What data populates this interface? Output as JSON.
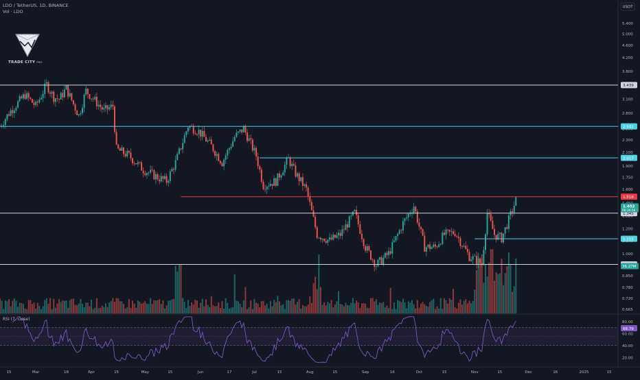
{
  "header": {
    "symbol_line": "LDO / TetherUS, 1D, BINANCE",
    "volume_line": "Vol · LDO",
    "currency_button": "USDT"
  },
  "logo": {
    "text": "TRADE CITY",
    "suffix": "PRO"
  },
  "colors": {
    "background": "#131722",
    "up": "#26a69a",
    "down": "#ef5350",
    "white_line": "#d1d4dc",
    "cyan_line": "#4dd0e1",
    "red_line": "#f23645",
    "rsi_line": "#7e57c2",
    "text": "#b2b5be"
  },
  "chart_data": [
    {
      "type": "candlestick",
      "title": "LDO / TetherUS, 1D, BINANCE",
      "y_scale": "log",
      "price_ticks": [
        "5.400",
        "5.000",
        "4.600",
        "4.200",
        "3.800",
        "3.400",
        "3.100",
        "2.800",
        "2.500",
        "2.300",
        "2.100",
        "1.900",
        "1.750",
        "1.600",
        "1.450",
        "1.320",
        "1.200",
        "1.100",
        "1.000",
        "0.924",
        "0.850",
        "0.780",
        "0.720",
        "0.665"
      ],
      "x_ticks": [
        "15",
        "Mar",
        "18",
        "Apr",
        "15",
        "May",
        "15",
        "Jun",
        "17",
        "Jul",
        "15",
        "Aug",
        "15",
        "Sep",
        "16",
        "Oct",
        "15",
        "Nov",
        "15",
        "Dec",
        "16",
        "2025",
        "15"
      ],
      "x_range": [
        "2024-02-10",
        "2025-01-20"
      ],
      "y_range": [
        0.645,
        5.8
      ],
      "price_path": [
        [
          "2024-02-10",
          2.55
        ],
        [
          "2024-02-16",
          2.85
        ],
        [
          "2024-02-24",
          3.2
        ],
        [
          "2024-03-01",
          2.95
        ],
        [
          "2024-03-07",
          3.45
        ],
        [
          "2024-03-11",
          3.15
        ],
        [
          "2024-03-14",
          3.1
        ],
        [
          "2024-03-18",
          3.35
        ],
        [
          "2024-03-25",
          2.75
        ],
        [
          "2024-03-29",
          3.3
        ],
        [
          "2024-04-08",
          2.85
        ],
        [
          "2024-04-13",
          2.95
        ],
        [
          "2024-04-15",
          2.15
        ],
        [
          "2024-04-22",
          2.05
        ],
        [
          "2024-04-30",
          1.85
        ],
        [
          "2024-05-08",
          1.75
        ],
        [
          "2024-05-13",
          1.7
        ],
        [
          "2024-05-18",
          1.95
        ],
        [
          "2024-05-25",
          2.55
        ],
        [
          "2024-05-31",
          2.45
        ],
        [
          "2024-06-07",
          2.2
        ],
        [
          "2024-06-13",
          1.95
        ],
        [
          "2024-06-20",
          2.35
        ],
        [
          "2024-06-25",
          2.5
        ],
        [
          "2024-07-02",
          2.05
        ],
        [
          "2024-07-06",
          1.65
        ],
        [
          "2024-07-13",
          1.7
        ],
        [
          "2024-07-20",
          2.0
        ],
        [
          "2024-07-24",
          1.8
        ],
        [
          "2024-07-30",
          1.6
        ],
        [
          "2024-08-05",
          1.15
        ],
        [
          "2024-08-12",
          1.1
        ],
        [
          "2024-08-18",
          1.15
        ],
        [
          "2024-08-26",
          1.35
        ],
        [
          "2024-09-01",
          1.05
        ],
        [
          "2024-09-07",
          0.92
        ],
        [
          "2024-09-14",
          1.0
        ],
        [
          "2024-09-22",
          1.25
        ],
        [
          "2024-09-28",
          1.42
        ],
        [
          "2024-10-04",
          1.05
        ],
        [
          "2024-10-10",
          1.05
        ],
        [
          "2024-10-15",
          1.15
        ],
        [
          "2024-10-21",
          1.17
        ],
        [
          "2024-10-29",
          0.98
        ],
        [
          "2024-11-05",
          0.93
        ],
        [
          "2024-11-08",
          1.35
        ],
        [
          "2024-11-12",
          1.15
        ],
        [
          "2024-11-16",
          1.12
        ],
        [
          "2024-11-20",
          1.28
        ],
        [
          "2024-11-24",
          1.48
        ]
      ],
      "current_price": "1.402",
      "current_countdown": "06:34:56"
    },
    {
      "type": "horizontal_levels",
      "levels": [
        {
          "price": "3.439",
          "color": "#d1d4dc",
          "full_width": true
        },
        {
          "price": "2.541",
          "color": "#4dd0e1",
          "full_width": true
        },
        {
          "price": "2.017",
          "color": "#4dd0e1",
          "from": "2024-07-04"
        },
        {
          "price": "1.518",
          "color": "#f23645",
          "from": "2024-05-21"
        },
        {
          "price": "1.345",
          "color": "#d1d4dc",
          "full_width": true
        },
        {
          "price": "1.115",
          "color": "#4dd0e1",
          "from": "2024-11-01"
        },
        {
          "price": "0.924",
          "color": "#d1d4dc",
          "full_width": true
        }
      ]
    },
    {
      "type": "bar",
      "series": "Vol · LDO",
      "current_value": "36.27M",
      "level": "mostly 5-20 percent of panel height, spikes up to 75 percent around mid-May, early Aug and November"
    },
    {
      "type": "line",
      "title": "RSI (7, close)",
      "y_ticks": [
        "80.00",
        "60.00",
        "40.00",
        "20.00"
      ],
      "bands": [
        40,
        70
      ],
      "current_value": "68.79",
      "ylim": [
        10,
        90
      ]
    }
  ]
}
